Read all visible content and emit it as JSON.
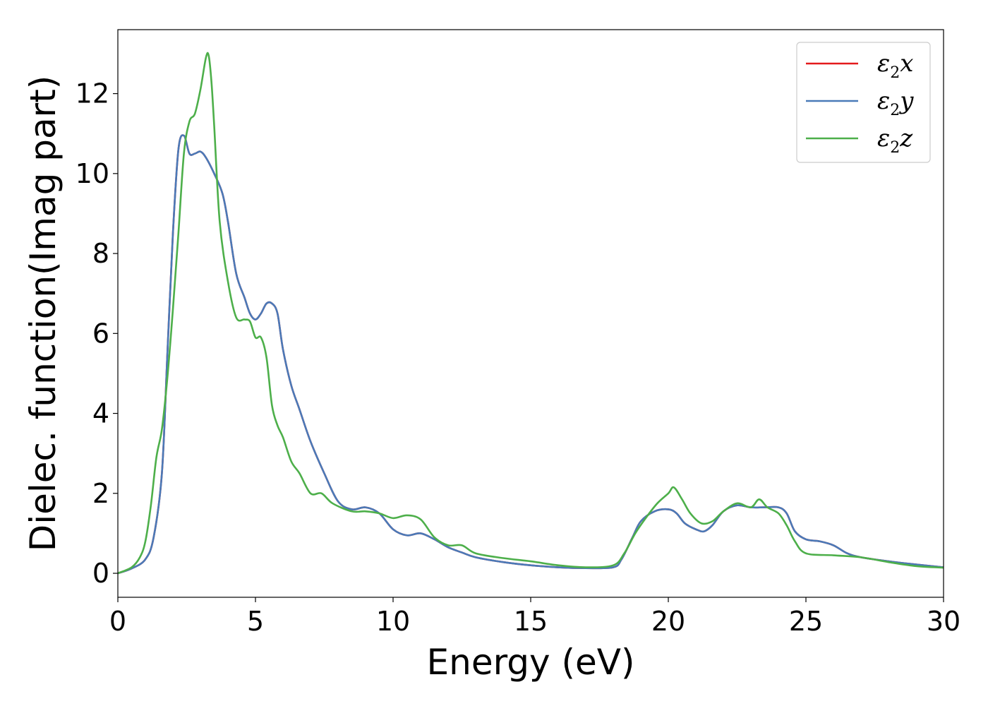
{
  "chart_data": {
    "type": "line",
    "title": "",
    "xlabel": "Energy (eV)",
    "ylabel": "Dielec. function(Imag part)",
    "xlim": [
      0,
      30
    ],
    "ylim": [
      -0.6,
      13.6
    ],
    "xticks": [
      0,
      5,
      10,
      15,
      20,
      25,
      30
    ],
    "yticks": [
      0,
      2,
      4,
      6,
      8,
      10,
      12
    ],
    "grid": false,
    "legend_position": "top-right",
    "series": [
      {
        "name": "ε2x",
        "legend": {
          "base": "ε",
          "sub": "2",
          "var": "x"
        },
        "color": "#e41a1c",
        "x": [
          0,
          0.5,
          1.0,
          1.3,
          1.6,
          1.8,
          2.0,
          2.2,
          2.4,
          2.6,
          2.8,
          3.0,
          3.2,
          3.5,
          3.8,
          4.0,
          4.3,
          4.6,
          4.8,
          5.0,
          5.2,
          5.4,
          5.6,
          5.8,
          6.0,
          6.3,
          6.6,
          7.0,
          7.5,
          8.0,
          8.5,
          9.0,
          9.5,
          10.0,
          10.5,
          11.0,
          11.5,
          12.0,
          12.5,
          13.0,
          14.0,
          15.0,
          16.0,
          17.0,
          18.0,
          18.3,
          18.7,
          19.0,
          19.5,
          20.0,
          20.3,
          20.6,
          21.0,
          21.3,
          21.6,
          22.0,
          22.5,
          23.0,
          23.5,
          24.0,
          24.3,
          24.6,
          25.0,
          25.5,
          26.0,
          26.5,
          27.0,
          28.0,
          29.0,
          30.0
        ],
        "values": [
          0,
          0.12,
          0.35,
          0.9,
          2.5,
          5.5,
          8.5,
          10.6,
          10.95,
          10.5,
          10.5,
          10.55,
          10.4,
          10.0,
          9.5,
          8.8,
          7.5,
          6.9,
          6.5,
          6.35,
          6.5,
          6.75,
          6.75,
          6.5,
          5.6,
          4.7,
          4.1,
          3.3,
          2.5,
          1.8,
          1.6,
          1.65,
          1.5,
          1.1,
          0.95,
          1.0,
          0.85,
          0.65,
          0.52,
          0.4,
          0.28,
          0.2,
          0.15,
          0.13,
          0.15,
          0.35,
          0.9,
          1.3,
          1.55,
          1.6,
          1.5,
          1.25,
          1.1,
          1.05,
          1.2,
          1.55,
          1.7,
          1.65,
          1.65,
          1.65,
          1.5,
          1.05,
          0.85,
          0.8,
          0.7,
          0.5,
          0.4,
          0.3,
          0.22,
          0.15
        ]
      },
      {
        "name": "ε2y",
        "legend": {
          "base": "ε",
          "sub": "2",
          "var": "y"
        },
        "color": "#4a7ab8",
        "x": [
          0,
          0.5,
          1.0,
          1.3,
          1.6,
          1.8,
          2.0,
          2.2,
          2.4,
          2.6,
          2.8,
          3.0,
          3.2,
          3.5,
          3.8,
          4.0,
          4.3,
          4.6,
          4.8,
          5.0,
          5.2,
          5.4,
          5.6,
          5.8,
          6.0,
          6.3,
          6.6,
          7.0,
          7.5,
          8.0,
          8.5,
          9.0,
          9.5,
          10.0,
          10.5,
          11.0,
          11.5,
          12.0,
          12.5,
          13.0,
          14.0,
          15.0,
          16.0,
          17.0,
          18.0,
          18.3,
          18.7,
          19.0,
          19.5,
          20.0,
          20.3,
          20.6,
          21.0,
          21.3,
          21.6,
          22.0,
          22.5,
          23.0,
          23.5,
          24.0,
          24.3,
          24.6,
          25.0,
          25.5,
          26.0,
          26.5,
          27.0,
          28.0,
          29.0,
          30.0
        ],
        "values": [
          0,
          0.12,
          0.35,
          0.9,
          2.5,
          5.5,
          8.5,
          10.6,
          10.95,
          10.5,
          10.5,
          10.55,
          10.4,
          10.0,
          9.5,
          8.8,
          7.5,
          6.9,
          6.5,
          6.35,
          6.5,
          6.75,
          6.75,
          6.5,
          5.6,
          4.7,
          4.1,
          3.3,
          2.5,
          1.8,
          1.6,
          1.65,
          1.5,
          1.1,
          0.95,
          1.0,
          0.85,
          0.65,
          0.52,
          0.4,
          0.28,
          0.2,
          0.15,
          0.13,
          0.15,
          0.35,
          0.9,
          1.3,
          1.55,
          1.6,
          1.5,
          1.25,
          1.1,
          1.05,
          1.2,
          1.55,
          1.7,
          1.65,
          1.65,
          1.65,
          1.5,
          1.05,
          0.85,
          0.8,
          0.7,
          0.5,
          0.4,
          0.3,
          0.22,
          0.15
        ]
      },
      {
        "name": "ε2z",
        "legend": {
          "base": "ε",
          "sub": "2",
          "var": "z"
        },
        "color": "#4daf4a",
        "x": [
          0,
          0.5,
          0.8,
          1.0,
          1.2,
          1.4,
          1.6,
          1.8,
          2.0,
          2.2,
          2.4,
          2.6,
          2.8,
          3.0,
          3.2,
          3.3,
          3.4,
          3.5,
          3.7,
          4.0,
          4.3,
          4.6,
          4.8,
          5.0,
          5.2,
          5.4,
          5.6,
          5.8,
          6.0,
          6.3,
          6.6,
          7.0,
          7.4,
          7.8,
          8.5,
          9.0,
          9.5,
          10.0,
          10.5,
          11.0,
          11.5,
          12.0,
          12.5,
          13.0,
          14.0,
          15.0,
          16.0,
          17.0,
          18.0,
          18.4,
          18.8,
          19.2,
          19.6,
          20.0,
          20.2,
          20.5,
          20.8,
          21.2,
          21.6,
          22.0,
          22.5,
          23.0,
          23.3,
          23.6,
          24.0,
          24.3,
          24.6,
          25.0,
          26.0,
          27.0,
          28.0,
          29.0,
          30.0
        ],
        "values": [
          0,
          0.15,
          0.4,
          0.8,
          1.7,
          2.9,
          3.6,
          4.9,
          6.6,
          8.5,
          10.5,
          11.3,
          11.5,
          12.1,
          12.9,
          12.95,
          12.3,
          11.2,
          8.8,
          7.3,
          6.4,
          6.35,
          6.3,
          5.9,
          5.9,
          5.4,
          4.2,
          3.7,
          3.4,
          2.8,
          2.5,
          2.0,
          2.0,
          1.75,
          1.55,
          1.55,
          1.5,
          1.38,
          1.45,
          1.35,
          0.9,
          0.7,
          0.7,
          0.5,
          0.38,
          0.3,
          0.2,
          0.15,
          0.2,
          0.5,
          1.0,
          1.4,
          1.75,
          2.0,
          2.15,
          1.85,
          1.5,
          1.25,
          1.3,
          1.55,
          1.75,
          1.65,
          1.85,
          1.65,
          1.5,
          1.2,
          0.8,
          0.5,
          0.45,
          0.4,
          0.28,
          0.18,
          0.14
        ]
      }
    ]
  }
}
